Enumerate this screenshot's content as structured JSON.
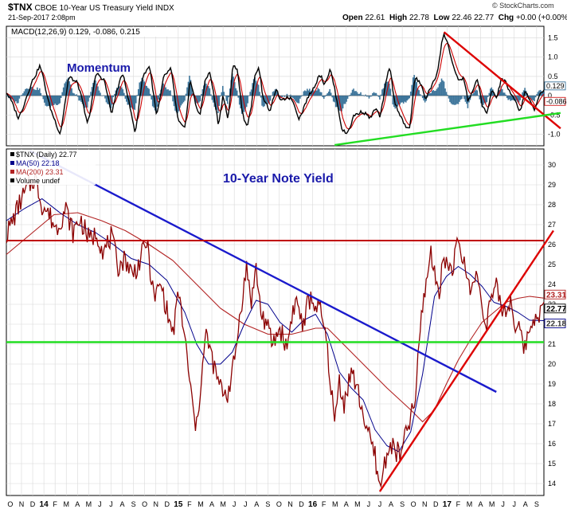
{
  "header": {
    "symbol": "$TNX",
    "description": "CBOE 10-Year US Treasury Yield INDX",
    "date": "21-Sep-2017 2:08pm",
    "source": "© StockCharts.com",
    "quote": {
      "open_label": "Open",
      "open": "22.61",
      "high_label": "High",
      "high": "22.78",
      "low_label": "Low",
      "low": "22.46",
      "close": "22.77",
      "chg_label": "Chg",
      "chg": "+0.00 (+0.00%)"
    }
  },
  "colors": {
    "price": "#8b0000",
    "ma50": "#00008b",
    "ma200": "#b22222",
    "macd_line": "#000000",
    "signal_line": "#cc0000",
    "histogram": "#1f5f8b",
    "trend_blue": "#1a1acc",
    "trend_red": "#dd0000",
    "support_green": "#22dd22",
    "title_blue": "#1a1aaa"
  },
  "chart_data": [
    {
      "type": "line",
      "panel": "MACD",
      "legend": "MACD(12,26,9) 0.129, -0.086, 0.215",
      "annotation": "Momentum",
      "ylim": [
        -1.3,
        1.8
      ],
      "yticks": [
        "1.5",
        "1.0",
        "0.5",
        "0",
        "-0.5",
        "-1.0"
      ],
      "ytick_values": [
        1.5,
        1.0,
        0.5,
        0,
        -0.5,
        -1.0
      ],
      "last_value_tags": [
        "0.129",
        "-0.086"
      ],
      "grid": true,
      "macd_keypoints": [
        [
          0,
          0.1
        ],
        [
          10,
          -0.6
        ],
        [
          20,
          0.3
        ],
        [
          28,
          0.8
        ],
        [
          36,
          -0.3
        ],
        [
          45,
          -1.0
        ],
        [
          52,
          0.5
        ],
        [
          60,
          0.3
        ],
        [
          68,
          -0.8
        ],
        [
          75,
          0.6
        ],
        [
          82,
          0.4
        ],
        [
          88,
          -0.5
        ],
        [
          93,
          0.2
        ],
        [
          98,
          0.6
        ],
        [
          104,
          -0.4
        ],
        [
          108,
          -1.0
        ],
        [
          114,
          0.5
        ],
        [
          120,
          0.8
        ],
        [
          126,
          -0.6
        ],
        [
          132,
          0.5
        ],
        [
          138,
          0.7
        ],
        [
          144,
          -0.7
        ],
        [
          150,
          -0.9
        ],
        [
          154,
          0.5
        ],
        [
          159,
          -0.3
        ],
        [
          163,
          -0.5
        ],
        [
          167,
          0.5
        ],
        [
          171,
          0.6
        ],
        [
          175,
          -0.2
        ],
        [
          178,
          -0.8
        ],
        [
          182,
          0.1
        ],
        [
          186,
          -0.7
        ],
        [
          190,
          0.8
        ],
        [
          194,
          0.7
        ],
        [
          198,
          -0.5
        ],
        [
          202,
          -0.8
        ],
        [
          205,
          -0.4
        ],
        [
          209,
          0.6
        ],
        [
          212,
          0.8
        ],
        [
          215,
          0.0
        ],
        [
          219,
          -0.3
        ],
        [
          222,
          -0.4
        ],
        [
          226,
          0.2
        ],
        [
          231,
          -0.2
        ],
        [
          236,
          0.0
        ],
        [
          240,
          -0.1
        ],
        [
          246,
          -0.6
        ],
        [
          252,
          -0.1
        ],
        [
          258,
          0.2
        ],
        [
          263,
          0.6
        ],
        [
          267,
          0.3
        ],
        [
          272,
          0.7
        ],
        [
          276,
          0.1
        ],
        [
          282,
          -0.9
        ],
        [
          286,
          -1.0
        ],
        [
          292,
          -0.5
        ],
        [
          300,
          -0.4
        ],
        [
          306,
          -0.6
        ],
        [
          310,
          -0.3
        ],
        [
          314,
          -0.6
        ],
        [
          318,
          0.2
        ],
        [
          322,
          0.8
        ],
        [
          326,
          -0.2
        ],
        [
          331,
          -0.5
        ],
        [
          336,
          -0.9
        ],
        [
          339,
          -0.8
        ],
        [
          343,
          0.5
        ],
        [
          348,
          0.3
        ],
        [
          352,
          -0.1
        ],
        [
          356,
          0.2
        ],
        [
          360,
          0.4
        ],
        [
          363,
          0.8
        ],
        [
          366,
          1.5
        ],
        [
          368,
          1.6
        ],
        [
          372,
          1.2
        ],
        [
          376,
          0.7
        ],
        [
          380,
          0.3
        ],
        [
          384,
          0.5
        ],
        [
          388,
          -0.2
        ],
        [
          392,
          0.2
        ],
        [
          396,
          0.4
        ],
        [
          400,
          -0.3
        ],
        [
          404,
          -0.5
        ],
        [
          408,
          0.2
        ],
        [
          412,
          -0.1
        ],
        [
          416,
          0.5
        ],
        [
          420,
          0.3
        ],
        [
          424,
          0.0
        ],
        [
          428,
          -0.2
        ],
        [
          432,
          -0.4
        ],
        [
          436,
          0.2
        ],
        [
          440,
          -0.2
        ],
        [
          444,
          -0.4
        ],
        [
          448,
          0.1
        ],
        [
          452,
          0.129
        ]
      ],
      "trendlines": [
        {
          "color": "red",
          "from": [
            368,
            1.65
          ],
          "to": [
            466,
            -0.85
          ]
        },
        {
          "color": "green",
          "from": [
            276,
            -1.28
          ],
          "to": [
            466,
            -0.45
          ]
        }
      ]
    },
    {
      "type": "line",
      "panel": "Price",
      "title": "10-Year Note Yield",
      "legend": [
        "$TNX (Daily) 22.77",
        "MA(50) 22.18",
        "MA(200) 23.31",
        "Volume undef"
      ],
      "ylim": [
        13.4,
        30.8
      ],
      "yticks": [
        "30",
        "29",
        "28",
        "27",
        "26",
        "25",
        "24",
        "23",
        "22",
        "21",
        "20",
        "19",
        "18",
        "17",
        "16",
        "15",
        "14"
      ],
      "ytick_values": [
        30,
        29,
        28,
        27,
        26,
        25,
        24,
        23,
        22,
        21,
        20,
        19,
        18,
        17,
        16,
        15,
        14
      ],
      "last_value_tags": [
        "23.31",
        "22.77",
        "22.18"
      ],
      "grid": true,
      "x_months": [
        "O",
        "N",
        "D",
        "14",
        "F",
        "M",
        "A",
        "M",
        "J",
        "J",
        "A",
        "S",
        "O",
        "N",
        "D",
        "15",
        "F",
        "M",
        "A",
        "M",
        "J",
        "J",
        "A",
        "S",
        "O",
        "N",
        "D",
        "16",
        "F",
        "M",
        "A",
        "M",
        "J",
        "J",
        "A",
        "S",
        "O",
        "N",
        "D",
        "17",
        "F",
        "M",
        "A",
        "M",
        "J",
        "J",
        "A",
        "S"
      ],
      "price_keypoints": [
        [
          0,
          26.5
        ],
        [
          6,
          27.3
        ],
        [
          12,
          28.2
        ],
        [
          18,
          28.8
        ],
        [
          24,
          29.4
        ],
        [
          30,
          28.0
        ],
        [
          36,
          27.5
        ],
        [
          42,
          26.8
        ],
        [
          50,
          27.8
        ],
        [
          56,
          26.6
        ],
        [
          62,
          27.3
        ],
        [
          70,
          26.2
        ],
        [
          76,
          26.6
        ],
        [
          82,
          25.6
        ],
        [
          88,
          26.4
        ],
        [
          94,
          24.9
        ],
        [
          100,
          25.3
        ],
        [
          106,
          24.5
        ],
        [
          112,
          25.1
        ],
        [
          118,
          26.2
        ],
        [
          124,
          23.3
        ],
        [
          130,
          24.0
        ],
        [
          136,
          22.4
        ],
        [
          140,
          21.5
        ],
        [
          145,
          23.6
        ],
        [
          150,
          21.3
        ],
        [
          154,
          19.2
        ],
        [
          158,
          17.2
        ],
        [
          160,
          16.8
        ],
        [
          164,
          19.4
        ],
        [
          168,
          21.5
        ],
        [
          172,
          20.5
        ],
        [
          176,
          19.5
        ],
        [
          180,
          18.8
        ],
        [
          186,
          18.5
        ],
        [
          192,
          20.2
        ],
        [
          197,
          22.8
        ],
        [
          202,
          24.8
        ],
        [
          206,
          23.2
        ],
        [
          210,
          24.8
        ],
        [
          214,
          22.6
        ],
        [
          218,
          22.1
        ],
        [
          224,
          21.0
        ],
        [
          230,
          21.8
        ],
        [
          236,
          20.8
        ],
        [
          240,
          22.5
        ],
        [
          244,
          23.2
        ],
        [
          250,
          21.8
        ],
        [
          254,
          23.3
        ],
        [
          260,
          23.0
        ],
        [
          264,
          22.6
        ],
        [
          268,
          21.6
        ],
        [
          272,
          19.5
        ],
        [
          276,
          17.0
        ],
        [
          280,
          19.2
        ],
        [
          284,
          18.0
        ],
        [
          290,
          19.7
        ],
        [
          296,
          18.5
        ],
        [
          300,
          17.5
        ],
        [
          305,
          16.3
        ],
        [
          310,
          15.4
        ],
        [
          314,
          13.7
        ],
        [
          318,
          15.0
        ],
        [
          322,
          16.0
        ],
        [
          328,
          15.6
        ],
        [
          332,
          15.4
        ],
        [
          336,
          16.5
        ],
        [
          340,
          17.3
        ],
        [
          344,
          18.2
        ],
        [
          347,
          21.0
        ],
        [
          350,
          23.0
        ],
        [
          353,
          24.0
        ],
        [
          357,
          25.8
        ],
        [
          360,
          24.4
        ],
        [
          364,
          23.8
        ],
        [
          368,
          25.4
        ],
        [
          372,
          24.8
        ],
        [
          376,
          25.0
        ],
        [
          380,
          26.1
        ],
        [
          384,
          25.2
        ],
        [
          388,
          24.2
        ],
        [
          392,
          23.8
        ],
        [
          396,
          24.6
        ],
        [
          400,
          22.8
        ],
        [
          404,
          22.2
        ],
        [
          408,
          23.4
        ],
        [
          412,
          23.8
        ],
        [
          416,
          22.9
        ],
        [
          420,
          22.6
        ],
        [
          424,
          23.2
        ],
        [
          428,
          22.0
        ],
        [
          432,
          21.5
        ],
        [
          436,
          20.8
        ],
        [
          440,
          21.8
        ],
        [
          444,
          22.4
        ],
        [
          448,
          22.6
        ],
        [
          452,
          22.77
        ]
      ],
      "ma50_keypoints": [
        [
          0,
          27.2
        ],
        [
          15,
          27.8
        ],
        [
          30,
          28.3
        ],
        [
          45,
          27.6
        ],
        [
          60,
          27.0
        ],
        [
          75,
          26.6
        ],
        [
          90,
          26.0
        ],
        [
          105,
          25.3
        ],
        [
          120,
          25.0
        ],
        [
          135,
          24.2
        ],
        [
          150,
          22.6
        ],
        [
          160,
          21.0
        ],
        [
          170,
          20.0
        ],
        [
          180,
          20.0
        ],
        [
          190,
          20.6
        ],
        [
          200,
          22.0
        ],
        [
          210,
          23.2
        ],
        [
          220,
          23.0
        ],
        [
          230,
          22.1
        ],
        [
          240,
          21.6
        ],
        [
          250,
          22.2
        ],
        [
          260,
          22.5
        ],
        [
          270,
          21.5
        ],
        [
          280,
          19.6
        ],
        [
          290,
          18.8
        ],
        [
          300,
          18.2
        ],
        [
          310,
          16.7
        ],
        [
          320,
          15.9
        ],
        [
          330,
          15.6
        ],
        [
          340,
          16.6
        ],
        [
          350,
          19.5
        ],
        [
          360,
          23.4
        ],
        [
          370,
          24.4
        ],
        [
          380,
          24.9
        ],
        [
          390,
          24.5
        ],
        [
          400,
          23.9
        ],
        [
          410,
          23.1
        ],
        [
          420,
          22.9
        ],
        [
          430,
          22.6
        ],
        [
          440,
          22.2
        ],
        [
          452,
          22.18
        ]
      ],
      "ma200_keypoints": [
        [
          0,
          25.5
        ],
        [
          20,
          26.5
        ],
        [
          40,
          27.5
        ],
        [
          60,
          27.6
        ],
        [
          80,
          27.2
        ],
        [
          100,
          26.7
        ],
        [
          120,
          26.0
        ],
        [
          140,
          25.2
        ],
        [
          160,
          24.0
        ],
        [
          180,
          22.8
        ],
        [
          200,
          22.0
        ],
        [
          220,
          21.5
        ],
        [
          240,
          21.5
        ],
        [
          260,
          21.8
        ],
        [
          270,
          21.8
        ],
        [
          280,
          21.2
        ],
        [
          300,
          20.0
        ],
        [
          320,
          18.8
        ],
        [
          340,
          17.7
        ],
        [
          350,
          17.1
        ],
        [
          360,
          17.7
        ],
        [
          370,
          19.0
        ],
        [
          380,
          20.2
        ],
        [
          390,
          21.2
        ],
        [
          400,
          22.1
        ],
        [
          410,
          22.6
        ],
        [
          420,
          23.1
        ],
        [
          430,
          23.3
        ],
        [
          440,
          23.4
        ],
        [
          452,
          23.31
        ]
      ],
      "trendlines": [
        {
          "color": "blue",
          "from": [
            20,
            30.7
          ],
          "to": [
            412,
            18.6
          ]
        },
        {
          "color": "red-horizontal",
          "y": 26.2
        },
        {
          "color": "green-horizontal",
          "y": 21.1
        },
        {
          "color": "red",
          "from": [
            314,
            13.6
          ],
          "to": [
            460,
            26.7
          ]
        }
      ]
    }
  ]
}
